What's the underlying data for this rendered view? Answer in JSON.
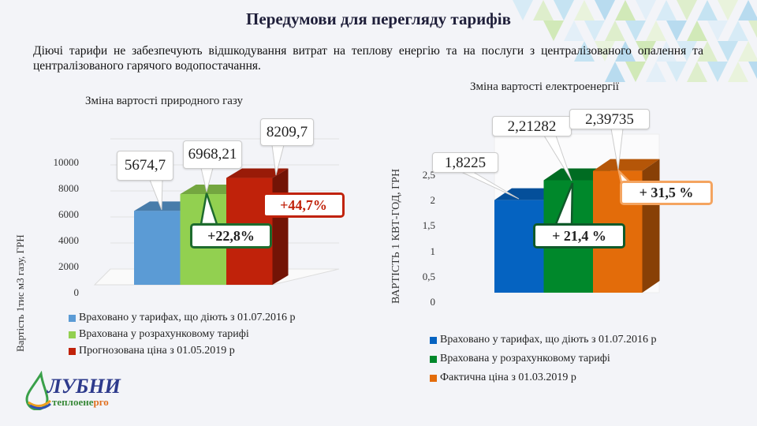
{
  "header": {
    "title": "Передумови для перегляду тарифів",
    "subtitle": "Діючі тарифи не забезпечують відшкодування витрат на теплову енергію та на послуги з централізованого опалення та централізованого гарячого водопостачання."
  },
  "logo": {
    "main": "ЛУБНИ",
    "sub": "теплоенерго"
  },
  "chart_data": [
    {
      "type": "bar",
      "title": "Зміна вартості природного газу",
      "ylabel": "Вартість 1тис м3 газу, ГРН",
      "ylim": [
        0,
        10000
      ],
      "yticks": [
        "0",
        "2000",
        "4000",
        "6000",
        "8000",
        "10000"
      ],
      "categories": [
        "Враховано у тарифах, що діють з 01.07.2016 р",
        "Врахована у розрахунковому  тарифі",
        "Прогнозована ціна з 01.05.2019 р"
      ],
      "values": [
        5674.7,
        6968.21,
        8209.7
      ],
      "data_labels": [
        "5674,7",
        "6968,21",
        "8209,7"
      ],
      "colors": [
        "#5b9bd5",
        "#92d050",
        "#c0220a"
      ],
      "annotations": [
        {
          "text": "+22,8%",
          "color": "#1e6b2e"
        },
        {
          "text": "+44,7%",
          "color": "#c0220a"
        }
      ],
      "legend": "bottom"
    },
    {
      "type": "bar",
      "title": "Зміна вартості електроенергії",
      "ylabel": "ВАРТІСТЬ 1 КВТ-ГОД, ГРН",
      "ylim": [
        0,
        2.5
      ],
      "yticks": [
        "0",
        "0,5",
        "1",
        "1,5",
        "2",
        "2,5"
      ],
      "categories": [
        "Враховано у тарифах, що діють з 01.07.2016 р",
        "Врахована у розрахунковому  тарифі",
        "Фактична ціна з 01.03.2019 р"
      ],
      "values": [
        1.8225,
        2.21282,
        2.39735
      ],
      "data_labels": [
        "1,8225",
        "2,21282",
        "2,39735"
      ],
      "colors": [
        "#0563c1",
        "#00882b",
        "#e36c0a"
      ],
      "annotations": [
        {
          "text": "+ 21,4 %",
          "color": "#0f5a2a"
        },
        {
          "text": "+ 31,5 %",
          "color": "#f4a460"
        }
      ],
      "legend": "bottom"
    }
  ]
}
